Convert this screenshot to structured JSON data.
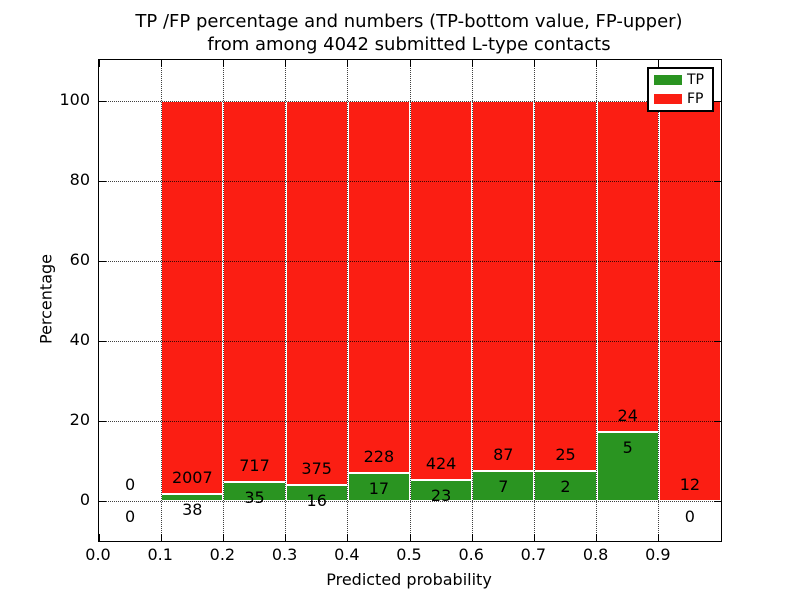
{
  "figure": {
    "title_line1": "TP /FP percentage and numbers (TP-bottom value, FP-upper)",
    "title_line2": "from among 4042 submitted L-type contacts"
  },
  "chart_data": {
    "type": "bar",
    "stacked": true,
    "normalized": "percent_of_bin_total",
    "title": "TP /FP percentage and numbers (TP-bottom value, FP-upper) from among 4042 submitted L-type contacts",
    "xlabel": "Predicted probability",
    "ylabel": "Percentage",
    "xlim": [
      0.0,
      1.0
    ],
    "ylim": [
      -10,
      110
    ],
    "grid": true,
    "grid_style": "dotted",
    "total_contacts": 4042,
    "x_ticks": [
      {
        "label": "0.0",
        "value": 0.0
      },
      {
        "label": "0.1",
        "value": 0.1
      },
      {
        "label": "0.2",
        "value": 0.2
      },
      {
        "label": "0.3",
        "value": 0.3
      },
      {
        "label": "0.4",
        "value": 0.4
      },
      {
        "label": "0.5",
        "value": 0.5
      },
      {
        "label": "0.6",
        "value": 0.6
      },
      {
        "label": "0.7",
        "value": 0.7
      },
      {
        "label": "0.8",
        "value": 0.8
      },
      {
        "label": "0.9",
        "value": 0.9
      }
    ],
    "y_ticks": [
      {
        "label": "0",
        "value": 0
      },
      {
        "label": "20",
        "value": 20
      },
      {
        "label": "40",
        "value": 40
      },
      {
        "label": "60",
        "value": 60
      },
      {
        "label": "80",
        "value": 80
      },
      {
        "label": "100",
        "value": 100
      }
    ],
    "series": [
      {
        "name": "TP",
        "color": "#2a9421",
        "counts": [
          0,
          38,
          35,
          16,
          17,
          23,
          7,
          2,
          5,
          0
        ]
      },
      {
        "name": "FP",
        "color": "#fb1e13",
        "counts": [
          0,
          2007,
          717,
          375,
          228,
          424,
          87,
          25,
          24,
          12
        ]
      }
    ],
    "bins": [
      {
        "x_start": 0.0,
        "x_end": 0.1,
        "tp": 0,
        "fp": 0
      },
      {
        "x_start": 0.1,
        "x_end": 0.2,
        "tp": 38,
        "fp": 2007
      },
      {
        "x_start": 0.2,
        "x_end": 0.3,
        "tp": 35,
        "fp": 717
      },
      {
        "x_start": 0.3,
        "x_end": 0.4,
        "tp": 16,
        "fp": 375
      },
      {
        "x_start": 0.4,
        "x_end": 0.5,
        "tp": 17,
        "fp": 228
      },
      {
        "x_start": 0.5,
        "x_end": 0.6,
        "tp": 23,
        "fp": 424
      },
      {
        "x_start": 0.6,
        "x_end": 0.7,
        "tp": 7,
        "fp": 87
      },
      {
        "x_start": 0.7,
        "x_end": 0.8,
        "tp": 2,
        "fp": 25
      },
      {
        "x_start": 0.8,
        "x_end": 0.9,
        "tp": 5,
        "fp": 24
      },
      {
        "x_start": 0.9,
        "x_end": 1.0,
        "tp": 0,
        "fp": 12
      }
    ],
    "bar_edge_color": "#ffffff",
    "annotation_color": "#000000",
    "legend": {
      "position": "upper right",
      "entries": [
        {
          "label": "TP",
          "color": "#2a9421"
        },
        {
          "label": "FP",
          "color": "#fb1e13"
        }
      ]
    }
  }
}
